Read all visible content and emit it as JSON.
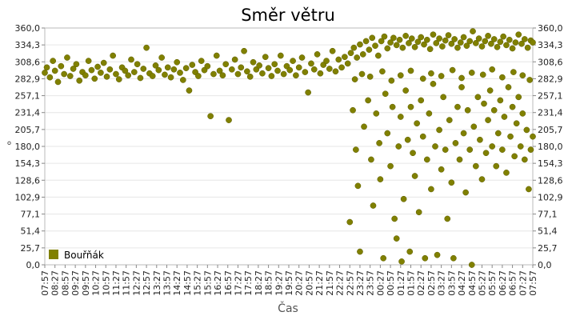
{
  "chart_data": {
    "type": "scatter",
    "title": "Směr větru",
    "xlabel": "Čas",
    "ylabel": "°",
    "ylim": [
      0,
      360
    ],
    "y_ticks": [
      "0,0",
      "25,7",
      "51,4",
      "77,1",
      "102,9",
      "128,6",
      "154,3",
      "180,0",
      "205,7",
      "231,4",
      "257,1",
      "282,9",
      "308,6",
      "334,3",
      "360,0"
    ],
    "x_ticks": [
      "07:57",
      "08:27",
      "08:57",
      "09:27",
      "09:57",
      "10:27",
      "10:57",
      "11:27",
      "11:57",
      "12:27",
      "12:57",
      "13:27",
      "13:57",
      "14:27",
      "14:57",
      "15:27",
      "15:57",
      "16:27",
      "16:57",
      "17:27",
      "17:57",
      "18:27",
      "18:57",
      "19:27",
      "19:57",
      "20:27",
      "20:57",
      "21:27",
      "21:57",
      "22:27",
      "22:57",
      "23:27",
      "23:57",
      "00:27",
      "00:57",
      "01:27",
      "01:57",
      "02:27",
      "02:57",
      "03:27",
      "03:57",
      "04:27",
      "04:57",
      "05:27",
      "05:57",
      "06:27",
      "06:57",
      "07:27",
      "07:57"
    ],
    "grid": true,
    "legend_position": "bottom-left",
    "series": [
      {
        "name": "Bouřňák",
        "color": "#808000",
        "points": [
          [
            0.0,
            292
          ],
          [
            0.2,
            300
          ],
          [
            0.5,
            285
          ],
          [
            0.8,
            310
          ],
          [
            1.0,
            295
          ],
          [
            1.3,
            278
          ],
          [
            1.6,
            302
          ],
          [
            1.9,
            290
          ],
          [
            2.2,
            315
          ],
          [
            2.5,
            287
          ],
          [
            2.8,
            298
          ],
          [
            3.1,
            305
          ],
          [
            3.4,
            280
          ],
          [
            3.7,
            293
          ],
          [
            4.0,
            288
          ],
          [
            4.3,
            310
          ],
          [
            4.6,
            296
          ],
          [
            4.9,
            283
          ],
          [
            5.2,
            301
          ],
          [
            5.5,
            292
          ],
          [
            5.8,
            307
          ],
          [
            6.1,
            286
          ],
          [
            6.4,
            297
          ],
          [
            6.7,
            318
          ],
          [
            7.0,
            290
          ],
          [
            7.3,
            282
          ],
          [
            7.6,
            300
          ],
          [
            7.9,
            295
          ],
          [
            8.2,
            288
          ],
          [
            8.5,
            312
          ],
          [
            8.8,
            293
          ],
          [
            9.1,
            305
          ],
          [
            9.4,
            284
          ],
          [
            9.7,
            298
          ],
          [
            10.0,
            330
          ],
          [
            10.3,
            291
          ],
          [
            10.6,
            287
          ],
          [
            10.9,
            303
          ],
          [
            11.2,
            296
          ],
          [
            11.5,
            315
          ],
          [
            11.8,
            289
          ],
          [
            12.1,
            300
          ],
          [
            12.4,
            285
          ],
          [
            12.7,
            297
          ],
          [
            13.0,
            308
          ],
          [
            13.3,
            292
          ],
          [
            13.6,
            281
          ],
          [
            13.9,
            299
          ],
          [
            14.2,
            265
          ],
          [
            14.5,
            304
          ],
          [
            14.8,
            293
          ],
          [
            15.1,
            287
          ],
          [
            15.4,
            310
          ],
          [
            15.7,
            296
          ],
          [
            16.0,
            302
          ],
          [
            16.3,
            226
          ],
          [
            16.6,
            290
          ],
          [
            16.9,
            318
          ],
          [
            17.2,
            295
          ],
          [
            17.5,
            288
          ],
          [
            17.8,
            305
          ],
          [
            18.1,
            220
          ],
          [
            18.4,
            297
          ],
          [
            18.7,
            312
          ],
          [
            19.0,
            290
          ],
          [
            19.3,
            300
          ],
          [
            19.6,
            325
          ],
          [
            19.9,
            294
          ],
          [
            20.2,
            286
          ],
          [
            20.5,
            308
          ],
          [
            20.8,
            297
          ],
          [
            21.1,
            303
          ],
          [
            21.4,
            291
          ],
          [
            21.7,
            316
          ],
          [
            22.0,
            299
          ],
          [
            22.3,
            287
          ],
          [
            22.6,
            305
          ],
          [
            22.9,
            295
          ],
          [
            23.2,
            318
          ],
          [
            23.5,
            290
          ],
          [
            23.8,
            302
          ],
          [
            24.1,
            296
          ],
          [
            24.4,
            310
          ],
          [
            24.7,
            288
          ],
          [
            25.0,
            300
          ],
          [
            25.3,
            315
          ],
          [
            25.6,
            293
          ],
          [
            25.9,
            262
          ],
          [
            26.2,
            306
          ],
          [
            26.5,
            297
          ],
          [
            26.8,
            320
          ],
          [
            27.1,
            291
          ],
          [
            27.4,
            304
          ],
          [
            27.7,
            310
          ],
          [
            28.0,
            298
          ],
          [
            28.3,
            325
          ],
          [
            28.6,
            294
          ],
          [
            28.9,
            312
          ],
          [
            29.2,
            300
          ],
          [
            29.5,
            316
          ],
          [
            29.8,
            306
          ],
          [
            30.1,
            322
          ],
          [
            30.4,
            330
          ],
          [
            30.7,
            315
          ],
          [
            31.0,
            335
          ],
          [
            31.3,
            320
          ],
          [
            31.6,
            340
          ],
          [
            31.9,
            327
          ],
          [
            32.2,
            345
          ],
          [
            32.5,
            333
          ],
          [
            32.8,
            318
          ],
          [
            33.1,
            340
          ],
          [
            33.4,
            347
          ],
          [
            33.7,
            329
          ],
          [
            34.0,
            338
          ],
          [
            34.3,
            345
          ],
          [
            34.6,
            334
          ],
          [
            34.9,
            342
          ],
          [
            35.2,
            330
          ],
          [
            35.5,
            348
          ],
          [
            35.8,
            337
          ],
          [
            36.1,
            344
          ],
          [
            36.4,
            331
          ],
          [
            36.7,
            339
          ],
          [
            37.0,
            346
          ],
          [
            37.3,
            335
          ],
          [
            37.6,
            342
          ],
          [
            37.9,
            328
          ],
          [
            38.2,
            350
          ],
          [
            38.5,
            337
          ],
          [
            38.8,
            344
          ],
          [
            39.1,
            332
          ],
          [
            39.4,
            341
          ],
          [
            39.7,
            349
          ],
          [
            40.0,
            336
          ],
          [
            40.3,
            343
          ],
          [
            40.6,
            330
          ],
          [
            40.9,
            338
          ],
          [
            41.2,
            346
          ],
          [
            41.5,
            333
          ],
          [
            41.8,
            340
          ],
          [
            42.1,
            355
          ],
          [
            42.4,
            337
          ],
          [
            42.7,
            344
          ],
          [
            43.0,
            332
          ],
          [
            43.3,
            340
          ],
          [
            43.6,
            348
          ],
          [
            43.9,
            336
          ],
          [
            44.2,
            343
          ],
          [
            44.5,
            331
          ],
          [
            44.8,
            339
          ],
          [
            45.1,
            347
          ],
          [
            45.4,
            334
          ],
          [
            45.7,
            342
          ],
          [
            46.0,
            329
          ],
          [
            46.3,
            338
          ],
          [
            46.6,
            350
          ],
          [
            46.9,
            336
          ],
          [
            47.2,
            343
          ],
          [
            47.5,
            330
          ],
          [
            47.8,
            341
          ],
          [
            48.0,
            338
          ],
          [
            30.5,
            282
          ],
          [
            31.2,
            290
          ],
          [
            32.0,
            286
          ],
          [
            33.2,
            294
          ],
          [
            34.1,
            280
          ],
          [
            35.0,
            288
          ],
          [
            36.0,
            295
          ],
          [
            37.2,
            283
          ],
          [
            38.0,
            291
          ],
          [
            39.0,
            287
          ],
          [
            40.1,
            296
          ],
          [
            41.0,
            284
          ],
          [
            42.0,
            292
          ],
          [
            43.1,
            289
          ],
          [
            44.0,
            297
          ],
          [
            45.0,
            285
          ],
          [
            46.1,
            293
          ],
          [
            47.0,
            288
          ],
          [
            47.7,
            281
          ],
          [
            30.0,
            65
          ],
          [
            30.3,
            235
          ],
          [
            30.6,
            175
          ],
          [
            30.8,
            120
          ],
          [
            31.0,
            20
          ],
          [
            31.4,
            210
          ],
          [
            31.8,
            250
          ],
          [
            32.1,
            160
          ],
          [
            32.3,
            90
          ],
          [
            32.6,
            230
          ],
          [
            32.9,
            185
          ],
          [
            33.0,
            130
          ],
          [
            33.3,
            10
          ],
          [
            33.5,
            260
          ],
          [
            33.7,
            200
          ],
          [
            34.0,
            150
          ],
          [
            34.2,
            240
          ],
          [
            34.4,
            70
          ],
          [
            34.6,
            40
          ],
          [
            34.8,
            180
          ],
          [
            35.0,
            225
          ],
          [
            35.1,
            5
          ],
          [
            35.3,
            100
          ],
          [
            35.5,
            265
          ],
          [
            35.7,
            190
          ],
          [
            35.9,
            20
          ],
          [
            36.0,
            240
          ],
          [
            36.2,
            170
          ],
          [
            36.4,
            135
          ],
          [
            36.6,
            215
          ],
          [
            36.8,
            80
          ],
          [
            37.0,
            250
          ],
          [
            37.2,
            195
          ],
          [
            37.4,
            10
          ],
          [
            37.6,
            160
          ],
          [
            37.8,
            230
          ],
          [
            38.0,
            115
          ],
          [
            38.2,
            275
          ],
          [
            38.4,
            180
          ],
          [
            38.6,
            15
          ],
          [
            38.8,
            205
          ],
          [
            39.0,
            145
          ],
          [
            39.2,
            255
          ],
          [
            39.4,
            175
          ],
          [
            39.6,
            70
          ],
          [
            39.8,
            220
          ],
          [
            40.0,
            125
          ],
          [
            40.2,
            10
          ],
          [
            40.4,
            185
          ],
          [
            40.6,
            240
          ],
          [
            40.8,
            160
          ],
          [
            41.0,
            270
          ],
          [
            41.2,
            200
          ],
          [
            41.4,
            110
          ],
          [
            41.6,
            235
          ],
          [
            41.8,
            175
          ],
          [
            42.0,
            0
          ],
          [
            42.2,
            210
          ],
          [
            42.4,
            150
          ],
          [
            42.6,
            255
          ],
          [
            42.8,
            190
          ],
          [
            43.0,
            130
          ],
          [
            43.2,
            245
          ],
          [
            43.4,
            170
          ],
          [
            43.6,
            220
          ],
          [
            43.8,
            265
          ],
          [
            44.0,
            180
          ],
          [
            44.2,
            235
          ],
          [
            44.4,
            150
          ],
          [
            44.6,
            200
          ],
          [
            44.8,
            250
          ],
          [
            45.0,
            175
          ],
          [
            45.2,
            225
          ],
          [
            45.4,
            140
          ],
          [
            45.6,
            270
          ],
          [
            45.8,
            195
          ],
          [
            46.0,
            240
          ],
          [
            46.2,
            165
          ],
          [
            46.4,
            215
          ],
          [
            46.6,
            255
          ],
          [
            46.8,
            180
          ],
          [
            47.0,
            230
          ],
          [
            47.2,
            160
          ],
          [
            47.4,
            205
          ],
          [
            47.6,
            115
          ],
          [
            47.8,
            175
          ],
          [
            48.0,
            195
          ]
        ]
      }
    ]
  }
}
